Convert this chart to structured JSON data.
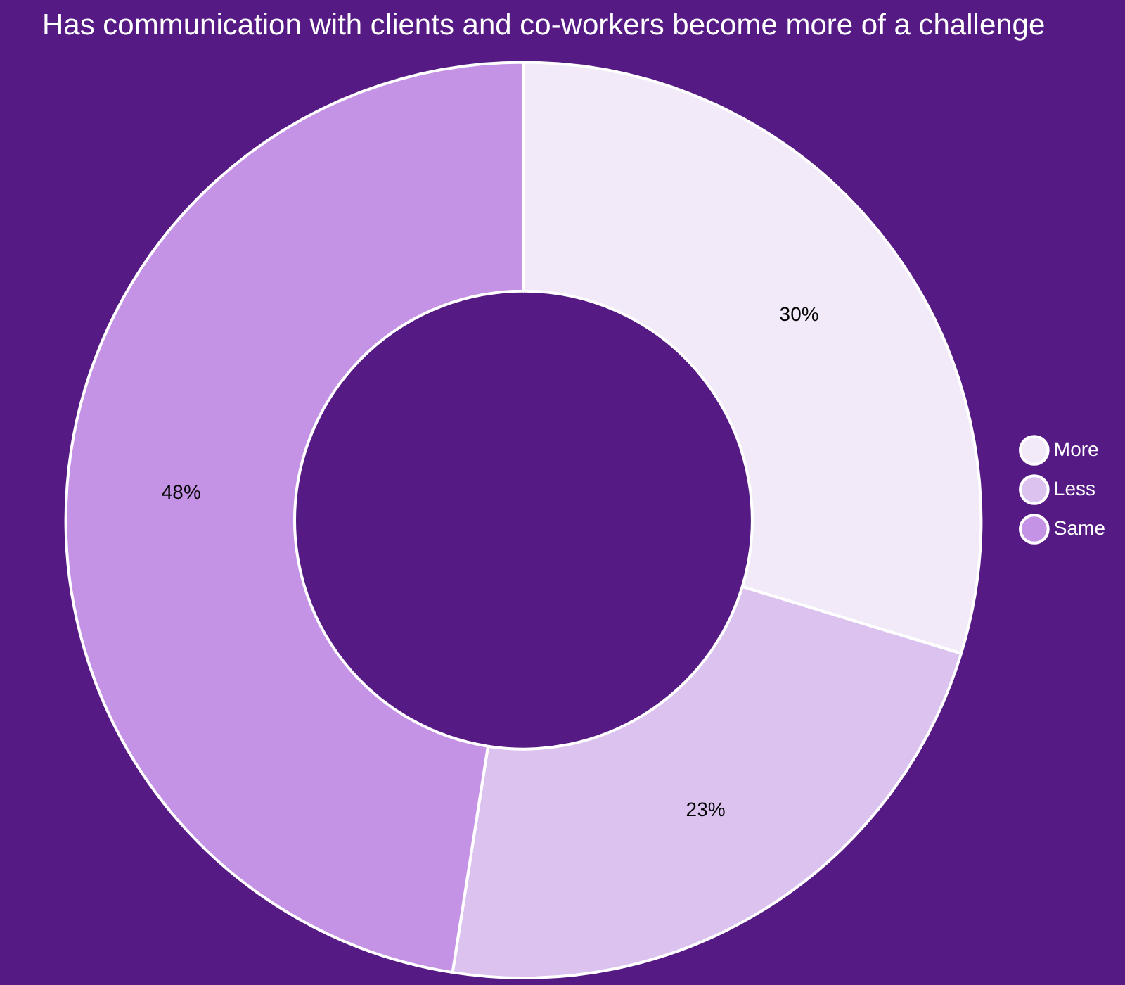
{
  "chart_data": {
    "type": "donut",
    "title": "Has communication with clients and co-workers become more of a challenge",
    "categories": [
      "More",
      "Less",
      "Same"
    ],
    "values": [
      30,
      23,
      48
    ],
    "value_labels": [
      "30%",
      "23%",
      "48%"
    ],
    "colors": [
      "#f3eaf9",
      "#dcc2ef",
      "#c593e6"
    ],
    "legend": "right"
  }
}
